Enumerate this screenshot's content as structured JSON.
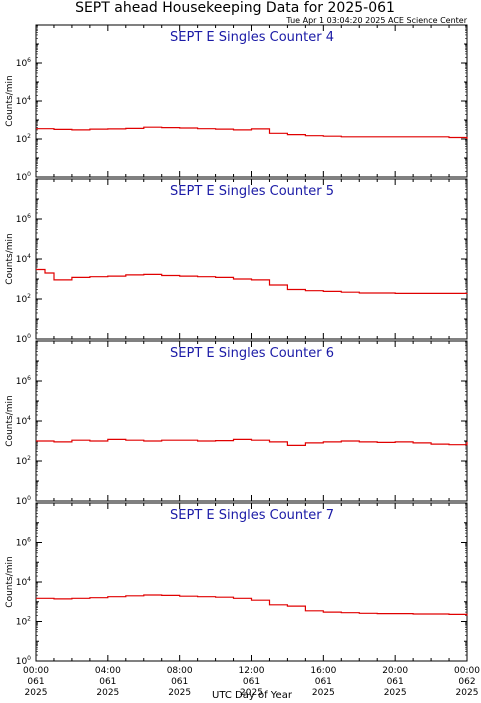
{
  "title": "SEPT ahead Housekeeping Data for 2025-061",
  "timestamp": "Tue Apr  1 03:04:20 2025 ACE Science Center",
  "x_axis_label": "UTC Day of Year",
  "colors": {
    "series": "#e00000",
    "panel_title": "#1a1aa6",
    "axis": "#000000"
  },
  "chart_data": [
    {
      "type": "line",
      "title": "SEPT E Singles Counter 4",
      "ylabel": "Counts/min",
      "yscale": "log",
      "ylim": [
        1,
        100000000
      ],
      "ytick_labels": [
        "10^0",
        "10^2",
        "10^4",
        "10^6"
      ],
      "xlim": [
        0,
        24
      ],
      "xtick_labels": [
        [
          "00:00",
          "061",
          "2025"
        ],
        [
          "04:00",
          "061",
          "2025"
        ],
        [
          "08:00",
          "061",
          "2025"
        ],
        [
          "12:00",
          "061",
          "2025"
        ],
        [
          "16:00",
          "061",
          "2025"
        ],
        [
          "20:00",
          "061",
          "2025"
        ],
        [
          "00:00",
          "062",
          "2025"
        ]
      ],
      "grid": false,
      "series": [
        {
          "x": [
            0,
            1,
            2,
            3,
            4,
            5,
            6,
            7,
            8,
            9,
            10,
            11,
            12,
            13,
            14,
            15,
            16,
            17,
            18,
            19,
            20,
            21,
            22,
            23,
            24
          ],
          "y": [
            350,
            320,
            300,
            330,
            340,
            360,
            420,
            400,
            380,
            350,
            330,
            300,
            340,
            200,
            170,
            150,
            140,
            130,
            130,
            130,
            130,
            130,
            130,
            120,
            100
          ]
        }
      ]
    },
    {
      "type": "line",
      "title": "SEPT E Singles Counter 5",
      "ylabel": "Counts/min",
      "yscale": "log",
      "ylim": [
        1,
        100000000
      ],
      "ytick_labels": [
        "10^0",
        "10^2",
        "10^4",
        "10^6"
      ],
      "xlim": [
        0,
        24
      ],
      "xtick_labels": [
        [
          "00:00",
          "061",
          "2025"
        ],
        [
          "04:00",
          "061",
          "2025"
        ],
        [
          "08:00",
          "061",
          "2025"
        ],
        [
          "12:00",
          "061",
          "2025"
        ],
        [
          "16:00",
          "061",
          "2025"
        ],
        [
          "20:00",
          "061",
          "2025"
        ],
        [
          "00:00",
          "062",
          "2025"
        ]
      ],
      "grid": false,
      "series": [
        {
          "x": [
            0,
            0.5,
            1,
            2,
            3,
            4,
            5,
            6,
            7,
            8,
            9,
            10,
            11,
            12,
            13,
            14,
            15,
            16,
            17,
            18,
            19,
            20,
            21,
            22,
            23,
            24
          ],
          "y": [
            3000,
            2000,
            900,
            1200,
            1300,
            1400,
            1600,
            1700,
            1500,
            1400,
            1300,
            1200,
            1000,
            900,
            500,
            300,
            260,
            240,
            220,
            200,
            200,
            190,
            190,
            190,
            190,
            200
          ]
        }
      ]
    },
    {
      "type": "line",
      "title": "SEPT E Singles Counter 6",
      "ylabel": "Counts/min",
      "yscale": "log",
      "ylim": [
        1,
        100000000
      ],
      "ytick_labels": [
        "10^0",
        "10^2",
        "10^4",
        "10^6"
      ],
      "xlim": [
        0,
        24
      ],
      "xtick_labels": [
        [
          "00:00",
          "061",
          "2025"
        ],
        [
          "04:00",
          "061",
          "2025"
        ],
        [
          "08:00",
          "061",
          "2025"
        ],
        [
          "12:00",
          "061",
          "2025"
        ],
        [
          "16:00",
          "061",
          "2025"
        ],
        [
          "20:00",
          "061",
          "2025"
        ],
        [
          "00:00",
          "062",
          "2025"
        ]
      ],
      "grid": false,
      "series": [
        {
          "x": [
            0,
            1,
            2,
            3,
            4,
            5,
            6,
            7,
            8,
            9,
            10,
            11,
            12,
            13,
            14,
            15,
            16,
            17,
            18,
            19,
            20,
            21,
            22,
            23,
            24
          ],
          "y": [
            1000,
            900,
            1100,
            1000,
            1200,
            1100,
            1000,
            1100,
            1100,
            1000,
            1050,
            1200,
            1100,
            900,
            600,
            800,
            900,
            1000,
            900,
            850,
            900,
            800,
            700,
            650,
            900
          ]
        }
      ]
    },
    {
      "type": "line",
      "title": "SEPT E Singles Counter 7",
      "ylabel": "Counts/min",
      "yscale": "log",
      "ylim": [
        1,
        100000000
      ],
      "ytick_labels": [
        "10^0",
        "10^2",
        "10^4",
        "10^6"
      ],
      "xlim": [
        0,
        24
      ],
      "xtick_labels": [
        [
          "00:00",
          "061",
          "2025"
        ],
        [
          "04:00",
          "061",
          "2025"
        ],
        [
          "08:00",
          "061",
          "2025"
        ],
        [
          "12:00",
          "061",
          "2025"
        ],
        [
          "16:00",
          "061",
          "2025"
        ],
        [
          "20:00",
          "061",
          "2025"
        ],
        [
          "00:00",
          "062",
          "2025"
        ]
      ],
      "grid": false,
      "series": [
        {
          "x": [
            0,
            1,
            2,
            3,
            4,
            5,
            6,
            7,
            8,
            9,
            10,
            11,
            12,
            13,
            14,
            15,
            16,
            17,
            18,
            19,
            20,
            21,
            22,
            23,
            24
          ],
          "y": [
            1500,
            1400,
            1500,
            1600,
            1800,
            2000,
            2200,
            2100,
            1900,
            1800,
            1700,
            1500,
            1200,
            700,
            600,
            350,
            300,
            280,
            260,
            250,
            250,
            240,
            240,
            230,
            200
          ]
        }
      ]
    }
  ]
}
